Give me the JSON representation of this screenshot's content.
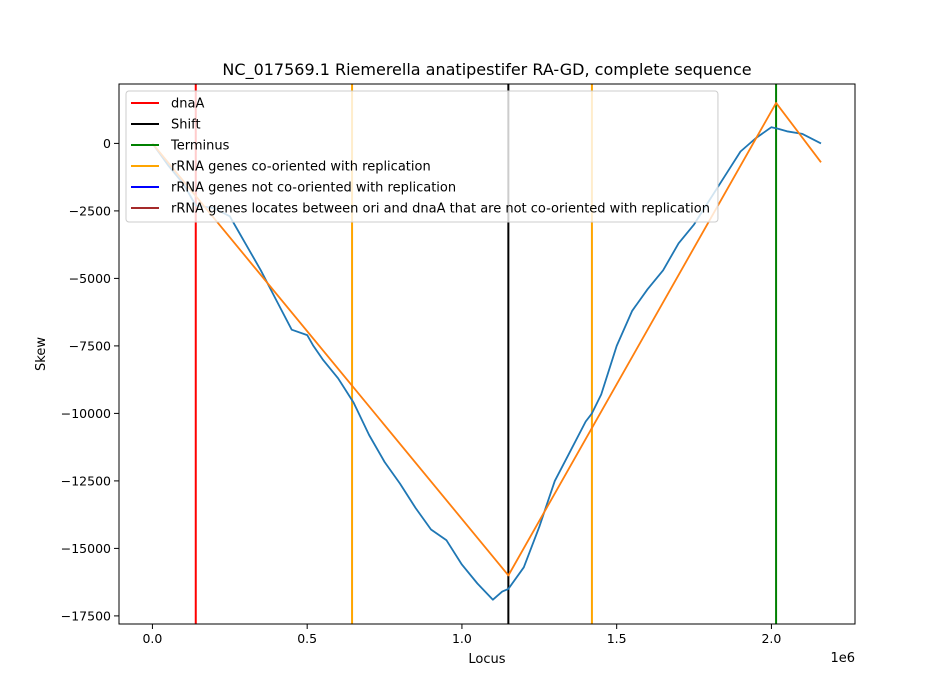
{
  "chart_data": {
    "type": "line",
    "title": "NC_017569.1 Riemerella anatipestifer RA-GD, complete sequence",
    "xlabel": "Locus",
    "ylabel": "Skew",
    "x_offset_label": "1e6",
    "xlim": [
      -0.108,
      2.27
    ],
    "ylim": [
      -17800,
      2200
    ],
    "x_ticks": [
      0.0,
      0.5,
      1.0,
      1.5,
      2.0
    ],
    "x_tick_labels": [
      "0.0",
      "0.5",
      "1.0",
      "1.5",
      "2.0"
    ],
    "y_ticks": [
      0,
      -2500,
      -5000,
      -7500,
      -10000,
      -12500,
      -15000,
      -17500
    ],
    "y_tick_labels": [
      "0",
      "−2500",
      "−5000",
      "−7500",
      "−10000",
      "−12500",
      "−15000",
      "−17500"
    ],
    "legend": {
      "placement": "upper-left",
      "entries": [
        {
          "label": "dnaA",
          "color": "#ff0000"
        },
        {
          "label": "Shift",
          "color": "#000000"
        },
        {
          "label": "Terminus",
          "color": "#008000"
        },
        {
          "label": "rRNA genes co-oriented with replication",
          "color": "#ffa500"
        },
        {
          "label": "rRNA genes not co-oriented with replication",
          "color": "#0000ff"
        },
        {
          "label": "rRNA genes locates between ori and dnaA that are not co-oriented with replication",
          "color": "#a52a2a"
        }
      ]
    },
    "vertical_lines": [
      {
        "x": 0.14,
        "color": "#ff0000"
      },
      {
        "x": 0.645,
        "color": "#ffa500"
      },
      {
        "x": 1.15,
        "color": "#000000"
      },
      {
        "x": 1.42,
        "color": "#ffa500"
      },
      {
        "x": 2.015,
        "color": "#008000"
      }
    ],
    "series": [
      {
        "color": "#1f77b4",
        "x": [
          0.0,
          0.05,
          0.1,
          0.14,
          0.2,
          0.25,
          0.28,
          0.3,
          0.35,
          0.4,
          0.45,
          0.5,
          0.52,
          0.55,
          0.6,
          0.65,
          0.7,
          0.75,
          0.8,
          0.85,
          0.9,
          0.95,
          1.0,
          1.05,
          1.1,
          1.13,
          1.15,
          1.2,
          1.25,
          1.3,
          1.35,
          1.4,
          1.42,
          1.45,
          1.5,
          1.55,
          1.6,
          1.65,
          1.7,
          1.75,
          1.8,
          1.85,
          1.9,
          1.95,
          2.0,
          2.02,
          2.05,
          2.1,
          2.16
        ],
        "y": [
          0,
          -800,
          -1500,
          -2300,
          -2400,
          -2700,
          -3300,
          -3700,
          -4700,
          -5800,
          -6900,
          -7100,
          -7500,
          -8000,
          -8700,
          -9600,
          -10800,
          -11800,
          -12600,
          -13500,
          -14300,
          -14700,
          -15600,
          -16300,
          -16900,
          -16600,
          -16500,
          -15700,
          -14200,
          -12500,
          -11400,
          -10300,
          -10000,
          -9300,
          -7500,
          -6200,
          -5400,
          -4700,
          -3700,
          -3000,
          -2100,
          -1200,
          -300,
          200,
          600,
          550,
          450,
          350,
          0
        ]
      },
      {
        "color": "#ff7f0e",
        "x": [
          0.0,
          1.15,
          2.015,
          2.16
        ],
        "y": [
          0,
          -16000,
          1500,
          -700
        ]
      }
    ]
  }
}
